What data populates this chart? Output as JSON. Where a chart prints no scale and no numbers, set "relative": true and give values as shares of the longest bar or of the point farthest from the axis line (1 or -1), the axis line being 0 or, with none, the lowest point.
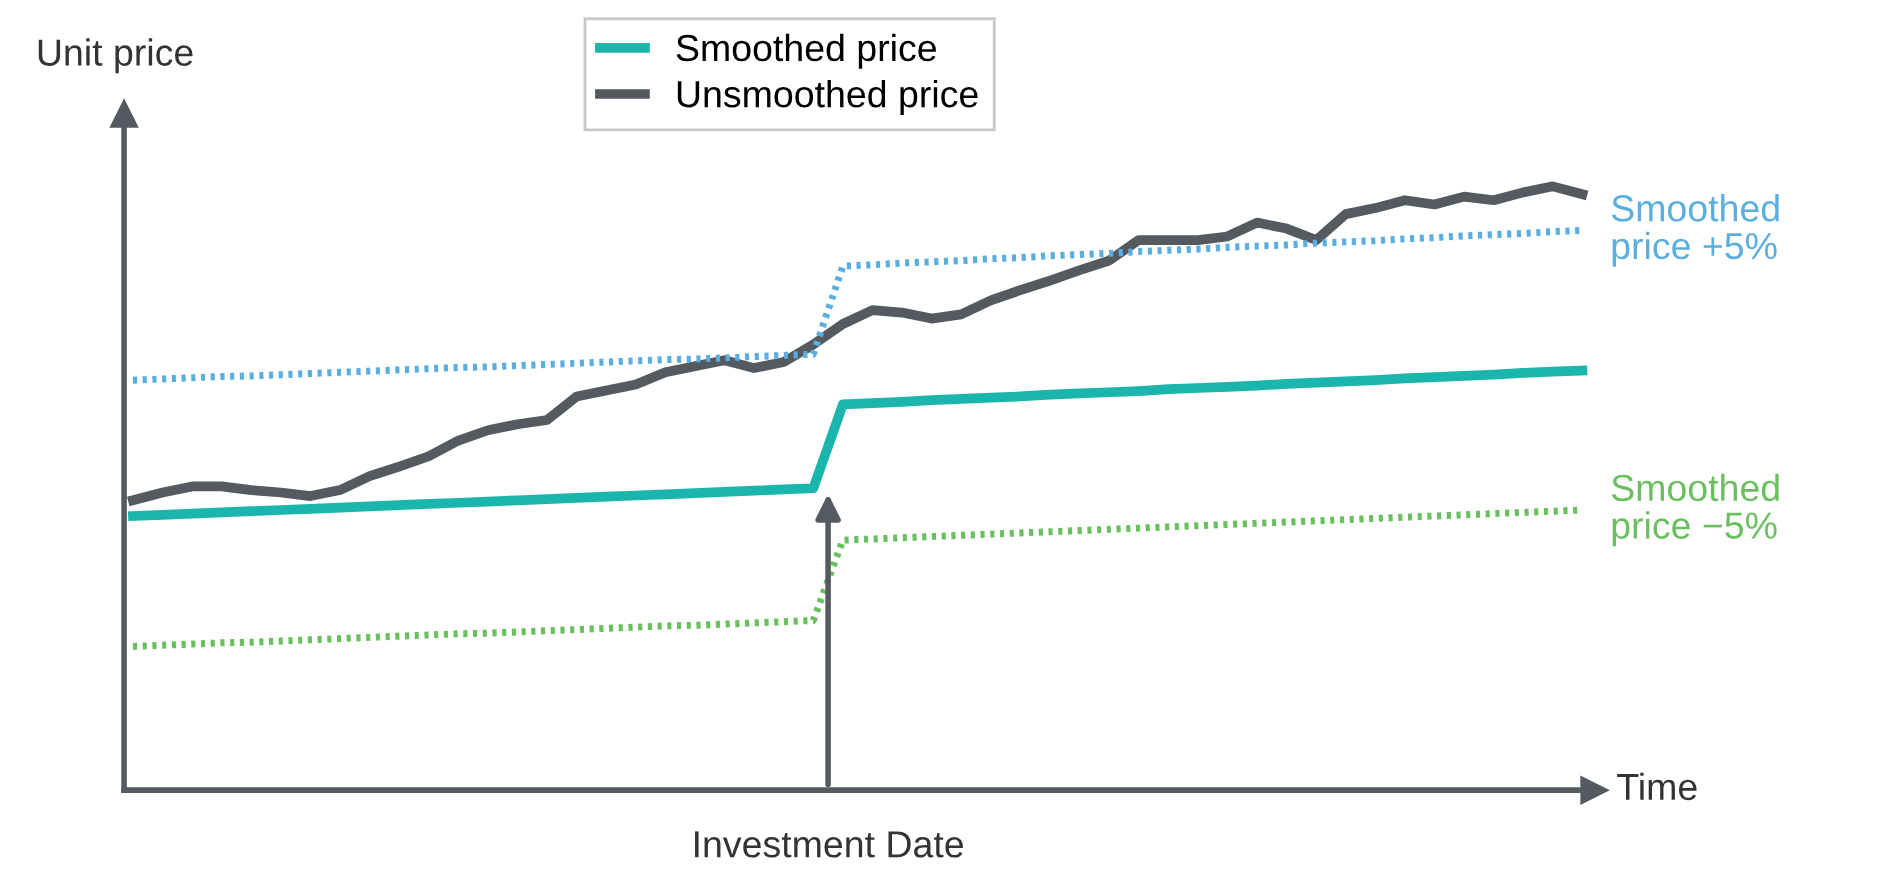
{
  "chart_data": {
    "type": "line",
    "relative": true,
    "xlabel": "Time",
    "ylabel": "Unit price",
    "legend": "top",
    "tick_labels": false,
    "categories": [
      null,
      null,
      null,
      null,
      null,
      null,
      null,
      null,
      null,
      null,
      null,
      null,
      null,
      null,
      null,
      null,
      null,
      null,
      null,
      null,
      null,
      null,
      null,
      null,
      null,
      null,
      null,
      null,
      null,
      null,
      null,
      null,
      null,
      null,
      null,
      null,
      null,
      null,
      null,
      null,
      null,
      null,
      null,
      null,
      null,
      null,
      null,
      null,
      null,
      null
    ],
    "annotations": [
      "Investment Date"
    ],
    "series": [
      {
        "name": "Smoothed price",
        "color": "#1ab5ad",
        "line_style": "solid",
        "values": [
          0.454,
          0.456,
          0.458,
          0.46,
          0.462,
          0.464,
          0.466,
          0.468,
          0.47,
          0.472,
          0.474,
          0.476,
          0.478,
          0.48,
          0.482,
          0.484,
          0.486,
          0.488,
          0.49,
          0.492,
          0.494,
          0.496,
          0.498,
          0.5,
          0.639,
          0.641,
          0.643,
          0.646,
          0.648,
          0.65,
          0.652,
          0.655,
          0.657,
          0.659,
          0.661,
          0.664,
          0.666,
          0.668,
          0.67,
          0.673,
          0.675,
          0.677,
          0.679,
          0.682,
          0.684,
          0.686,
          0.688,
          0.691,
          0.693,
          0.695
        ]
      },
      {
        "name": "Unsmoothed price",
        "color": "#555a61",
        "line_style": "solid",
        "values": [
          0.48,
          0.493,
          0.503,
          0.503,
          0.497,
          0.493,
          0.487,
          0.497,
          0.52,
          0.536,
          0.553,
          0.579,
          0.596,
          0.606,
          0.613,
          0.652,
          0.662,
          0.672,
          0.692,
          0.702,
          0.712,
          0.699,
          0.709,
          0.738,
          0.772,
          0.795,
          0.791,
          0.781,
          0.788,
          0.811,
          0.828,
          0.844,
          0.861,
          0.877,
          0.911,
          0.911,
          0.911,
          0.917,
          0.94,
          0.93,
          0.911,
          0.954,
          0.964,
          0.977,
          0.97,
          0.983,
          0.977,
          0.99,
          1.0,
          0.987
        ]
      },
      {
        "name": "Smoothed price +5%",
        "color": "#5aaee0",
        "line_style": "dotted",
        "values": [
          0.679,
          0.681,
          0.683,
          0.685,
          0.686,
          0.688,
          0.69,
          0.692,
          0.694,
          0.696,
          0.698,
          0.7,
          0.701,
          0.703,
          0.705,
          0.707,
          0.709,
          0.711,
          0.713,
          0.714,
          0.716,
          0.718,
          0.72,
          0.722,
          0.868,
          0.87,
          0.873,
          0.875,
          0.877,
          0.88,
          0.882,
          0.885,
          0.887,
          0.889,
          0.892,
          0.894,
          0.896,
          0.899,
          0.901,
          0.903,
          0.906,
          0.908,
          0.91,
          0.913,
          0.915,
          0.918,
          0.92,
          0.922,
          0.925,
          0.927
        ]
      },
      {
        "name": "Smoothed price −5%",
        "color": "#6abf5f",
        "line_style": "dotted",
        "values": [
          0.238,
          0.24,
          0.242,
          0.244,
          0.245,
          0.247,
          0.249,
          0.251,
          0.253,
          0.255,
          0.257,
          0.259,
          0.26,
          0.262,
          0.264,
          0.266,
          0.268,
          0.27,
          0.272,
          0.273,
          0.275,
          0.277,
          0.279,
          0.281,
          0.414,
          0.416,
          0.418,
          0.42,
          0.422,
          0.424,
          0.426,
          0.428,
          0.43,
          0.432,
          0.434,
          0.436,
          0.438,
          0.44,
          0.442,
          0.444,
          0.446,
          0.448,
          0.45,
          0.452,
          0.454,
          0.456,
          0.458,
          0.46,
          0.462,
          0.464
        ]
      }
    ]
  }
}
